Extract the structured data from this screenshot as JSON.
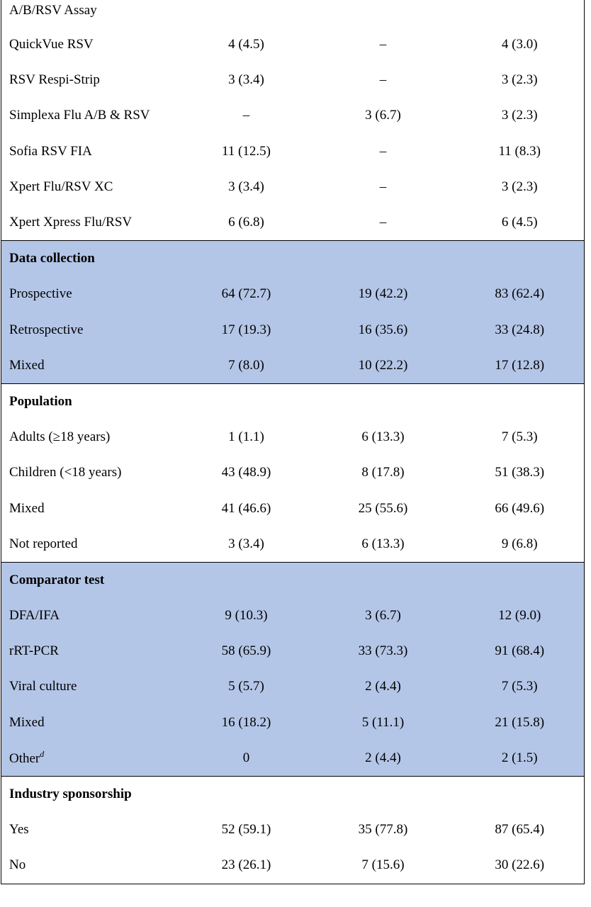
{
  "rows": [
    {
      "label": "A/B/RSV Assay",
      "c1": "",
      "c2": "",
      "c3": ""
    },
    {
      "label": "QuickVue RSV",
      "c1": "4 (4.5)",
      "c2": "–",
      "c3": "4 (3.0)"
    },
    {
      "label": "RSV Respi-Strip",
      "c1": "3 (3.4)",
      "c2": "–",
      "c3": "3 (2.3)"
    },
    {
      "label": "Simplexa Flu A/B & RSV",
      "c1": "–",
      "c2": "3 (6.7)",
      "c3": "3 (2.3)"
    },
    {
      "label": "Sofia RSV FIA",
      "c1": "11 (12.5)",
      "c2": "–",
      "c3": "11 (8.3)"
    },
    {
      "label": "Xpert Flu/RSV XC",
      "c1": "3 (3.4)",
      "c2": "–",
      "c3": "3 (2.3)"
    },
    {
      "label": "Xpert Xpress Flu/RSV",
      "c1": "6 (6.8)",
      "c2": "–",
      "c3": "6 (4.5)"
    },
    {
      "label": "Data collection",
      "c1": "",
      "c2": "",
      "c3": ""
    },
    {
      "label": "Prospective",
      "c1": "64 (72.7)",
      "c2": "19 (42.2)",
      "c3": "83 (62.4)"
    },
    {
      "label": "Retrospective",
      "c1": "17 (19.3)",
      "c2": "16 (35.6)",
      "c3": "33 (24.8)"
    },
    {
      "label": "Mixed",
      "c1": "7 (8.0)",
      "c2": "10 (22.2)",
      "c3": "17 (12.8)"
    },
    {
      "label": "Population",
      "c1": "",
      "c2": "",
      "c3": ""
    },
    {
      "label": "Adults (≥18 years)",
      "c1": "1 (1.1)",
      "c2": "6 (13.3)",
      "c3": "7 (5.3)"
    },
    {
      "label": "Children (<18 years)",
      "c1": "43 (48.9)",
      "c2": "8 (17.8)",
      "c3": "51 (38.3)"
    },
    {
      "label": "Mixed",
      "c1": "41 (46.6)",
      "c2": "25 (55.6)",
      "c3": "66 (49.6)"
    },
    {
      "label": "Not reported",
      "c1": "3 (3.4)",
      "c2": "6 (13.3)",
      "c3": "9 (6.8)"
    },
    {
      "label": "Comparator test",
      "c1": "",
      "c2": "",
      "c3": ""
    },
    {
      "label": "DFA/IFA",
      "c1": "9 (10.3)",
      "c2": "3 (6.7)",
      "c3": "12 (9.0)"
    },
    {
      "label": "rRT-PCR",
      "c1": "58 (65.9)",
      "c2": "33 (73.3)",
      "c3": "91 (68.4)"
    },
    {
      "label": "Viral culture",
      "c1": "5 (5.7)",
      "c2": "2 (4.4)",
      "c3": "7 (5.3)"
    },
    {
      "label": "Mixed",
      "c1": "16 (18.2)",
      "c2": "5 (11.1)",
      "c3": "21 (15.8)"
    },
    {
      "label": "Other",
      "footnote": "d",
      "c1": "0",
      "c2": "2 (4.4)",
      "c3": "2 (1.5)"
    },
    {
      "label": "Industry sponsorship",
      "c1": "",
      "c2": "",
      "c3": ""
    },
    {
      "label": "Yes",
      "c1": "52 (59.1)",
      "c2": "35 (77.8)",
      "c3": "87 (65.4)"
    },
    {
      "label": "No",
      "c1": "23 (26.1)",
      "c2": "7 (15.6)",
      "c3": "30 (22.6)"
    }
  ],
  "colors": {
    "shade": "#b4c6e7",
    "border": "#000000"
  }
}
